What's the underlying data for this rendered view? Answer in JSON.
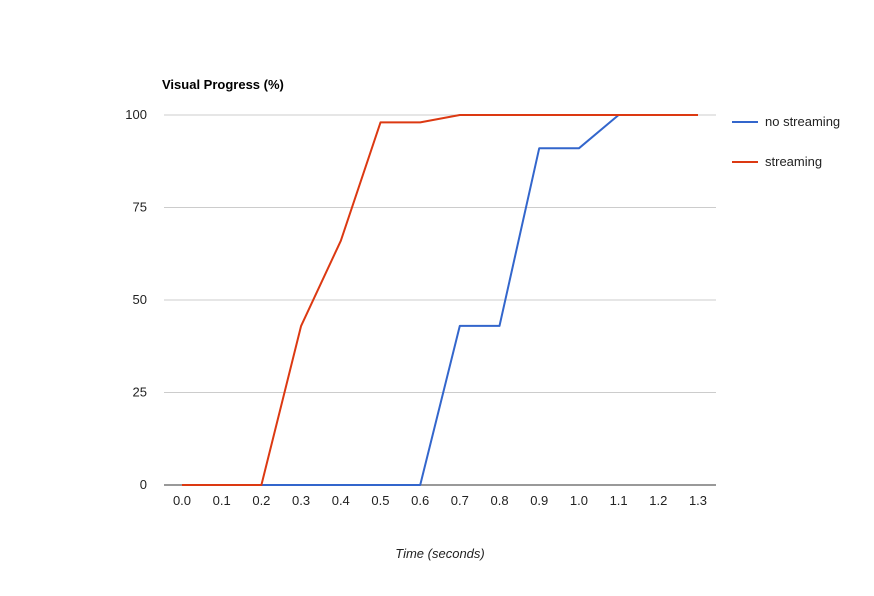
{
  "chart_data": {
    "type": "line",
    "title": "Visual Progress (%)",
    "xlabel": "Time (seconds)",
    "ylabel": "",
    "x": [
      0.0,
      0.1,
      0.2,
      0.3,
      0.4,
      0.5,
      0.6,
      0.7,
      0.8,
      0.9,
      1.0,
      1.1,
      1.2,
      1.3
    ],
    "x_tick_labels": [
      "0.0",
      "0.1",
      "0.2",
      "0.3",
      "0.4",
      "0.5",
      "0.6",
      "0.7",
      "0.8",
      "0.9",
      "1.0",
      "1.1",
      "1.2",
      "1.3"
    ],
    "y_ticks": [
      0,
      25,
      50,
      75,
      100
    ],
    "ylim": [
      0,
      100
    ],
    "xlim": [
      0.0,
      1.3
    ],
    "grid": true,
    "legend_position": "right",
    "series": [
      {
        "name": "no streaming",
        "color": "#3366cc",
        "values": [
          0,
          0,
          0,
          0,
          0,
          0,
          0,
          43,
          43,
          91,
          91,
          100,
          100,
          100
        ]
      },
      {
        "name": "streaming",
        "color": "#dc3912",
        "values": [
          0,
          0,
          0,
          43,
          66,
          98,
          98,
          100,
          100,
          100,
          100,
          100,
          100,
          100
        ]
      }
    ]
  }
}
